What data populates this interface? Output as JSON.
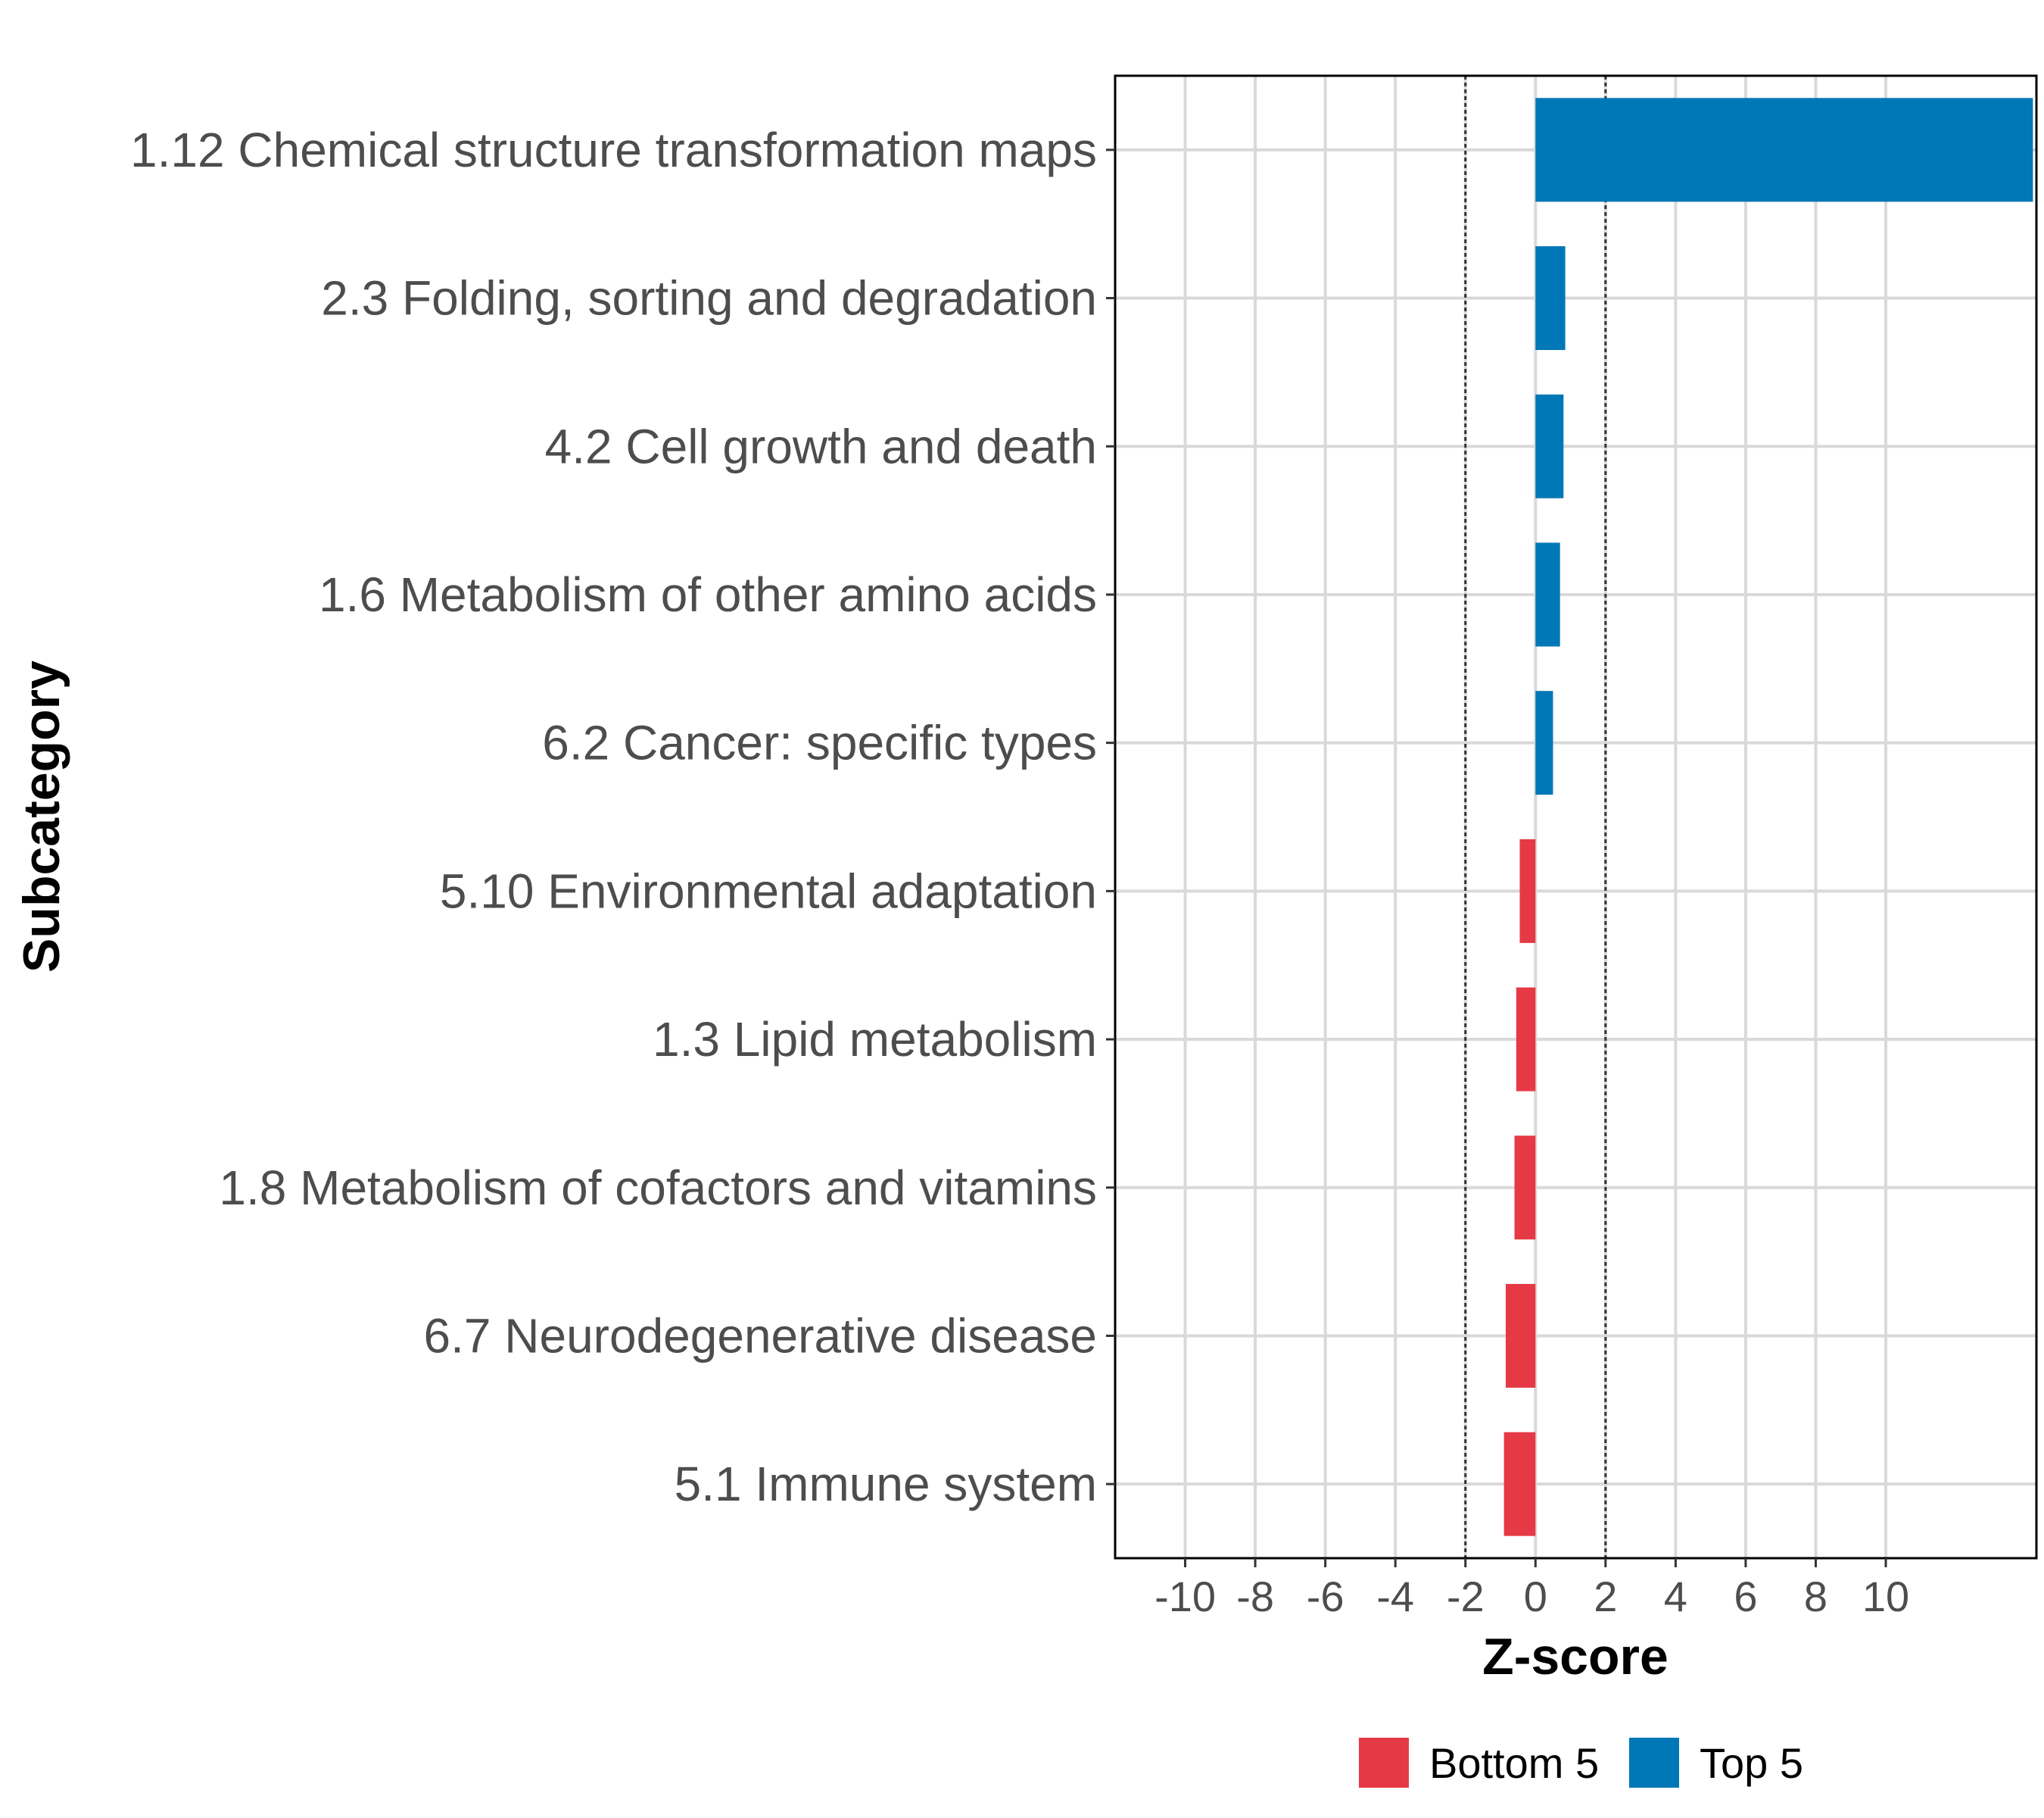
{
  "chart_data": {
    "type": "bar",
    "orientation": "horizontal",
    "title": "",
    "xlabel": "Z-score",
    "ylabel": "Subcategory",
    "xlim": [
      -12,
      14.3
    ],
    "x_ticks": [
      "-10",
      "-8",
      "-6",
      "-4",
      "-2",
      "0",
      "2",
      "4",
      "6",
      "8",
      "10"
    ],
    "x_tick_values": [
      -10,
      -8,
      -6,
      -4,
      -2,
      0,
      2,
      4,
      6,
      8,
      10
    ],
    "threshold_lines": [
      -2,
      2
    ],
    "grid": true,
    "legend_position": "bottom",
    "legend": [
      {
        "name": "Bottom 5",
        "color": "#e63946"
      },
      {
        "name": "Top 5",
        "color": "#0077b6"
      }
    ],
    "categories": [
      "1.12 Chemical structure transformation maps",
      "2.3 Folding, sorting and degradation",
      "4.2 Cell growth and death",
      "1.6 Metabolism of other amino acids",
      "6.2 Cancer: specific types",
      "5.10 Environmental adaptation",
      "1.3 Lipid metabolism",
      "1.8 Metabolism of cofactors and vitamins",
      "6.7 Neurodegenerative disease",
      "5.1 Immune system"
    ],
    "values": [
      14.2,
      0.85,
      0.8,
      0.7,
      0.5,
      -0.45,
      -0.55,
      -0.6,
      -0.85,
      -0.9
    ],
    "groups": [
      "Top 5",
      "Top 5",
      "Top 5",
      "Top 5",
      "Top 5",
      "Bottom 5",
      "Bottom 5",
      "Bottom 5",
      "Bottom 5",
      "Bottom 5"
    ]
  },
  "colors": {
    "top": "#0077b6",
    "bottom": "#e63946",
    "grid": "#d9d9d9",
    "panel_border": "#000000",
    "threshold": "#333333"
  }
}
